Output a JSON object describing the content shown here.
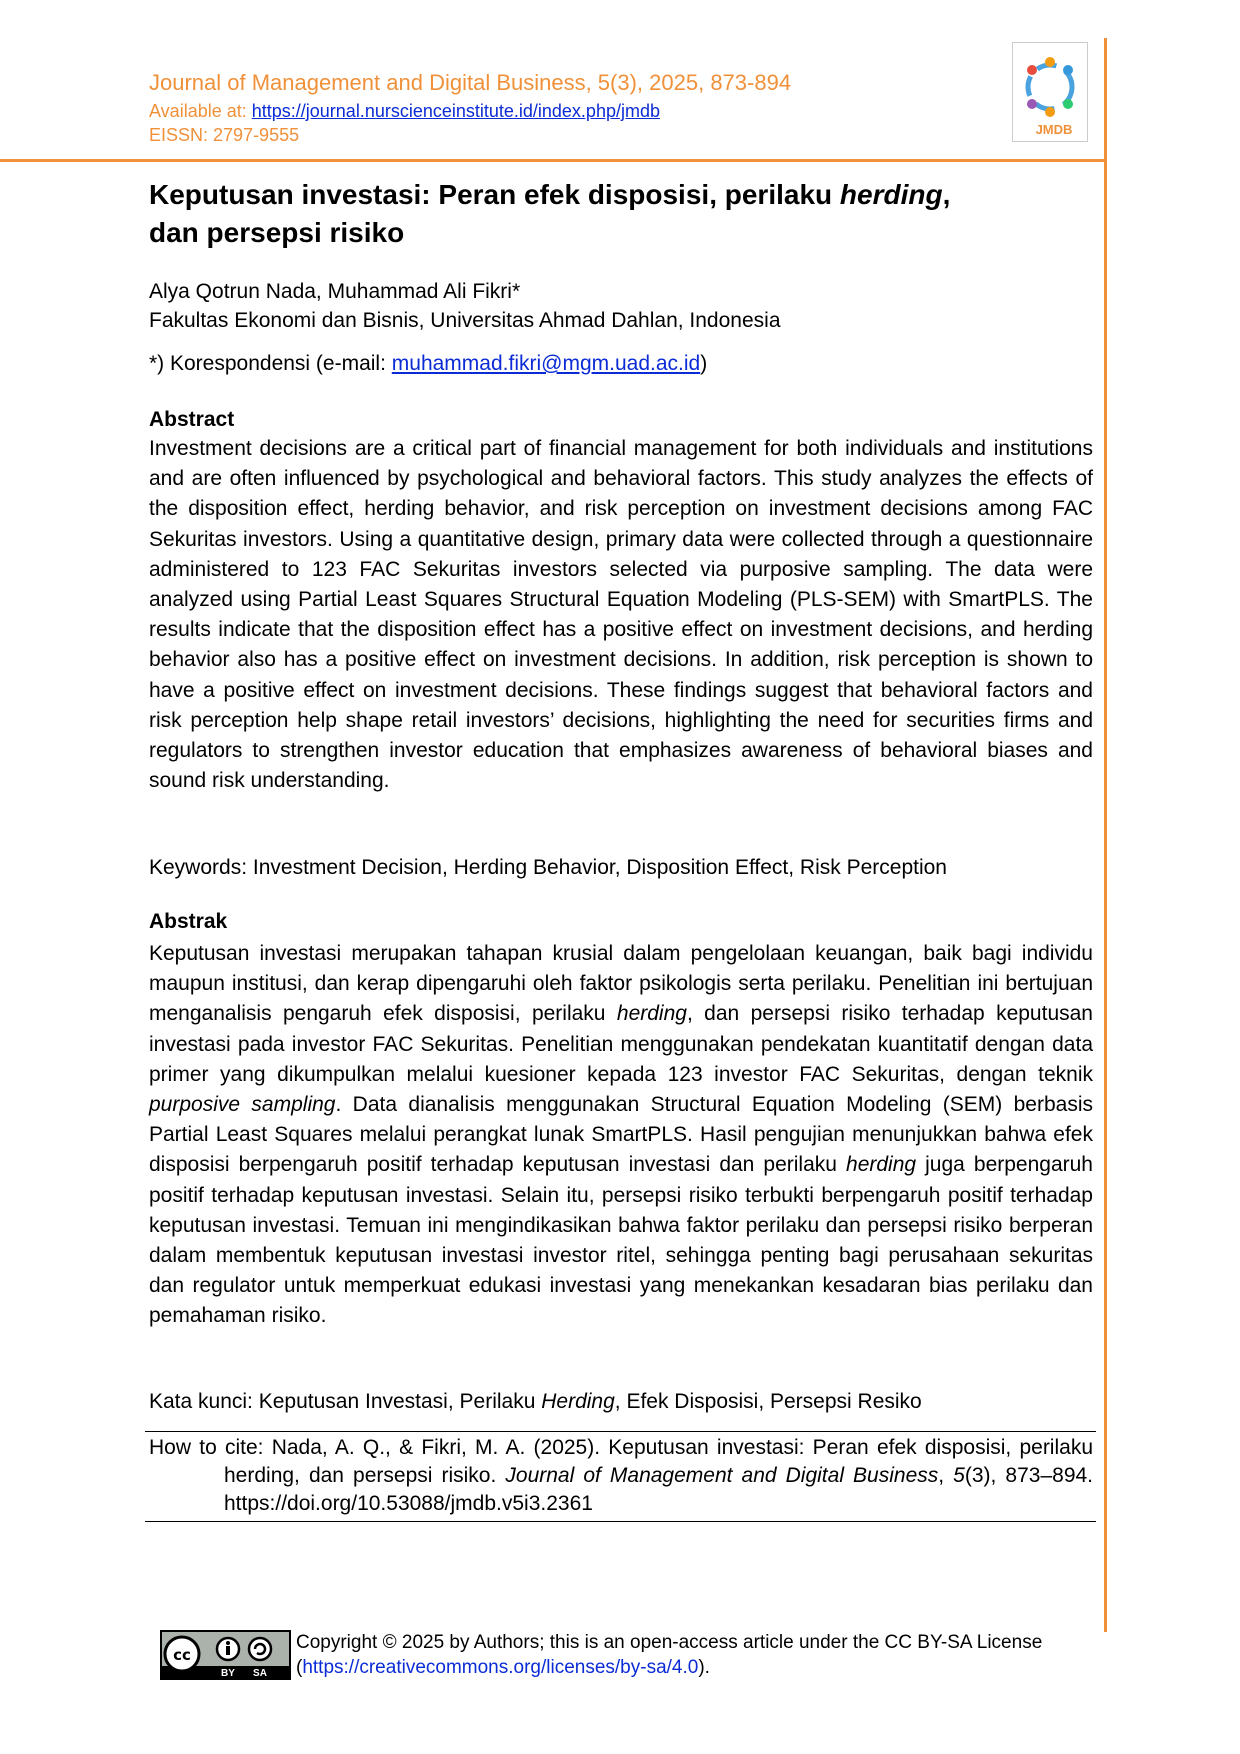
{
  "header": {
    "journal": "Journal of Management and Digital Business, 5(3), 2025, 873-894",
    "available_label": "Available at: ",
    "url": "https://journal.nurscienceinstitute.id/index.php/jmdb",
    "eissn": "EISSN: 2797-9555",
    "logo_text": "JMDB"
  },
  "title": {
    "parts": [
      "Keputusan investasi: Peran efek disposisi, perilaku ",
      "herding",
      ",",
      "dan persepsi risiko"
    ]
  },
  "authors": "Alya Qotrun Nada, Muhammad Ali Fikri*",
  "affiliation": "Fakultas Ekonomi dan Bisnis, Universitas Ahmad Dahlan, Indonesia",
  "correspondence": {
    "label": "*) Korespondensi (e-mail: ",
    "email": "muhammad.fikri@mgm.uad.ac.id",
    "close": ")"
  },
  "abstract": {
    "heading": "Abstract",
    "text": "Investment decisions are a critical part of financial management for both individuals and institutions and are often influenced by psychological and behavioral factors. This study analyzes the effects of the disposition effect, herding behavior, and risk perception on investment decisions among FAC Sekuritas investors. Using a quantitative design, primary data were collected through a questionnaire administered to 123 FAC Sekuritas investors selected via purposive sampling. The data were analyzed using Partial Least Squares Structural Equation Modeling (PLS-SEM) with SmartPLS. The results indicate that the disposition effect has a positive effect on investment decisions, and herding behavior also has a positive effect on investment decisions. In addition, risk perception is shown to have a positive effect on investment decisions. These findings suggest that behavioral factors and risk perception help shape retail investors’ decisions, highlighting the need for securities firms and regulators to strengthen investor education that emphasizes awareness of behavioral biases and sound risk understanding.",
    "keywords": "Keywords: Investment Decision, Herding Behavior, Disposition Effect, Risk Perception"
  },
  "abstrak": {
    "heading": "Abstrak",
    "parts": [
      "Keputusan investasi merupakan tahapan krusial dalam pengelolaan keuangan, baik bagi individu maupun institusi, dan kerap dipengaruhi oleh faktor psikologis serta perilaku. Penelitian ini bertujuan menganalisis pengaruh efek disposisi, perilaku ",
      "herding",
      ", dan persepsi risiko terhadap keputusan investasi pada investor FAC Sekuritas. Penelitian menggunakan pendekatan kuantitatif dengan data primer yang dikumpulkan melalui kuesioner kepada 123 investor FAC Sekuritas, dengan teknik ",
      "purposive sampling",
      ". Data dianalisis menggunakan Structural Equation Modeling (SEM) berbasis Partial Least Squares melalui perangkat lunak SmartPLS. Hasil pengujian menunjukkan bahwa efek disposisi berpengaruh positif terhadap keputusan investasi dan perilaku ",
      "herding",
      " juga berpengaruh positif terhadap keputusan investasi. Selain itu, persepsi risiko terbukti berpengaruh positif terhadap keputusan investasi. Temuan ini mengindikasikan bahwa faktor perilaku dan persepsi risiko berperan dalam membentuk keputusan investasi investor ritel, sehingga penting bagi perusahaan sekuritas dan regulator untuk memperkuat edukasi investasi yang menekankan kesadaran bias perilaku dan pemahaman risiko."
    ],
    "keywords": [
      "Kata kunci: Keputusan Investasi, Perilaku ",
      "Herding",
      ", Efek Disposisi, Persepsi Resiko"
    ]
  },
  "cite": [
    "How to cite: Nada, A. Q., & Fikri, M. A. (2025). Keputusan investasi: Peran efek disposisi, perilaku herding, dan persepsi risiko. ",
    "Journal of Management and Digital Business",
    ", ",
    "5",
    "(3), 873–894. https://doi.org/10.53088/jmdb.v5i3.2361"
  ],
  "license": {
    "badge": [
      "BY",
      "SA"
    ],
    "parts": [
      "Copyright © 2025 by Authors; this is an open-access article under the CC BY-SA License (",
      "https://creativecommons.org/licenses/by-sa/4.0",
      ")."
    ]
  }
}
